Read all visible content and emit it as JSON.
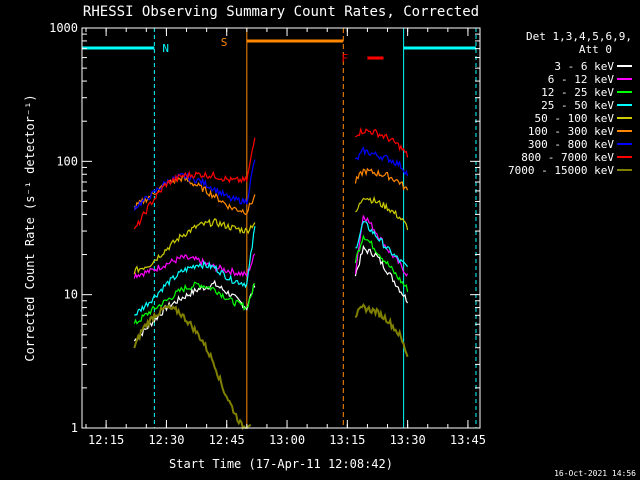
{
  "chart_data": {
    "type": "line",
    "title": "RHESSI Observing Summary Count Rates, Corrected",
    "xlabel": "Start Time (17-Apr-11 12:08:42)",
    "ylabel": "Corrected Count Rate (s⁻¹ detector⁻¹)",
    "yscale": "log",
    "ylim": [
      1,
      1000
    ],
    "xlim": [
      "12:09",
      "13:48"
    ],
    "x_ticks": [
      "12:15",
      "12:30",
      "12:45",
      "13:00",
      "13:15",
      "13:30",
      "13:45"
    ],
    "y_ticks": [
      "1",
      "10",
      "100",
      "1000"
    ],
    "grid": false,
    "legend_position": "right",
    "legend_header": [
      "Det 1,3,4,5,6,9,",
      "Att 0"
    ],
    "date_stamp": "16-Oct-2021 14:56",
    "series": [
      {
        "name": "3 - 6 keV",
        "color": "#ffffff",
        "x": [
          "12:22",
          "12:26",
          "12:30",
          "12:34",
          "12:38",
          "12:42",
          "12:46",
          "12:50",
          "12:52",
          "13:17",
          "13:19",
          "13:22",
          "13:25",
          "13:28",
          "13:30"
        ],
        "values": [
          4.5,
          6,
          8,
          9.5,
          11,
          12,
          10,
          8,
          12,
          14,
          22,
          20,
          15,
          11,
          9
        ]
      },
      {
        "name": "6 - 12 keV",
        "color": "#ff00ff",
        "x": [
          "12:22",
          "12:26",
          "12:30",
          "12:34",
          "12:38",
          "12:42",
          "12:46",
          "12:50",
          "12:52",
          "13:17",
          "13:19",
          "13:22",
          "13:25",
          "13:28",
          "13:30"
        ],
        "values": [
          14,
          15,
          17,
          19,
          18,
          16,
          15,
          14,
          20,
          15,
          40,
          30,
          22,
          17,
          14
        ]
      },
      {
        "name": "12 - 25 keV",
        "color": "#00ff00",
        "x": [
          "12:22",
          "12:26",
          "12:30",
          "12:34",
          "12:38",
          "12:42",
          "12:46",
          "12:50",
          "12:52",
          "13:17",
          "13:19",
          "13:22",
          "13:25",
          "13:28",
          "13:30"
        ],
        "values": [
          6,
          7.5,
          9,
          11,
          12,
          11,
          9,
          8,
          12,
          18,
          28,
          22,
          17,
          13,
          11
        ]
      },
      {
        "name": "25 - 50 keV",
        "color": "#00ffff",
        "x": [
          "12:22",
          "12:26",
          "12:30",
          "12:34",
          "12:38",
          "12:42",
          "12:46",
          "12:50",
          "12:52",
          "13:17",
          "13:19",
          "13:22",
          "13:25",
          "13:28",
          "13:30"
        ],
        "values": [
          7,
          9,
          12,
          15,
          17,
          16,
          13,
          12,
          32,
          22,
          35,
          28,
          22,
          18,
          16
        ]
      },
      {
        "name": "50 - 100 keV",
        "color": "#cccc00",
        "x": [
          "12:22",
          "12:26",
          "12:30",
          "12:34",
          "12:38",
          "12:42",
          "12:46",
          "12:50",
          "12:52",
          "13:17",
          "13:19",
          "13:22",
          "13:25",
          "13:28",
          "13:30"
        ],
        "values": [
          15,
          17,
          22,
          28,
          33,
          35,
          32,
          30,
          35,
          40,
          55,
          50,
          45,
          38,
          32
        ]
      },
      {
        "name": "100 - 300 keV",
        "color": "#ff8800",
        "x": [
          "12:22",
          "12:26",
          "12:30",
          "12:34",
          "12:38",
          "12:42",
          "12:46",
          "12:50",
          "12:52",
          "13:17",
          "13:19",
          "13:22",
          "13:25",
          "13:28",
          "13:30"
        ],
        "values": [
          45,
          55,
          68,
          75,
          65,
          55,
          45,
          42,
          55,
          70,
          85,
          82,
          78,
          70,
          60
        ]
      },
      {
        "name": "300 - 800 keV",
        "color": "#0000ff",
        "x": [
          "12:22",
          "12:26",
          "12:30",
          "12:34",
          "12:38",
          "12:42",
          "12:46",
          "12:50",
          "12:52",
          "13:17",
          "13:19",
          "13:22",
          "13:25",
          "13:28",
          "13:30"
        ],
        "values": [
          45,
          55,
          70,
          78,
          72,
          62,
          52,
          50,
          105,
          100,
          120,
          112,
          105,
          95,
          80
        ]
      },
      {
        "name": "800 - 7000 keV",
        "color": "#ff0000",
        "x": [
          "12:22",
          "12:26",
          "12:30",
          "12:34",
          "12:38",
          "12:42",
          "12:46",
          "12:50",
          "12:52",
          "13:17",
          "13:19",
          "13:22",
          "13:25",
          "13:28",
          "13:30"
        ],
        "values": [
          30,
          48,
          68,
          78,
          80,
          78,
          72,
          72,
          150,
          160,
          170,
          165,
          150,
          130,
          110
        ]
      },
      {
        "name": "7000 - 15000 keV",
        "color": "#808000",
        "x": [
          "12:22",
          "12:24",
          "12:27",
          "12:30",
          "12:33",
          "12:36",
          "12:39",
          "12:42",
          "12:44",
          "12:47",
          "12:49",
          "12:51",
          "13:17",
          "13:19",
          "13:22",
          "13:25",
          "13:28",
          "13:30"
        ],
        "values": [
          4,
          5.5,
          7,
          8,
          7.5,
          6,
          4.5,
          3,
          2,
          1.3,
          1,
          1.1,
          7,
          8,
          7.5,
          6.5,
          5,
          3.5
        ]
      }
    ],
    "annotations": [
      {
        "text": "N",
        "color": "#00ffff",
        "x": "12:28"
      },
      {
        "text": "S",
        "color": "#ff8800",
        "x": "12:47"
      },
      {
        "text": "F",
        "color": "#ff0000",
        "x": "13:17"
      }
    ]
  }
}
